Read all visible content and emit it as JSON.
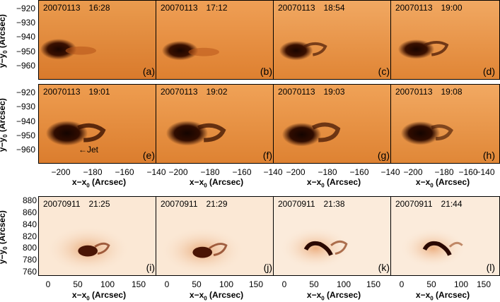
{
  "figure": {
    "rows": [
      {
        "ylabel": "y−y",
        "ylabel_sub": "0",
        "ylabel_unit": " (Arcsec)",
        "yticks": [
          "−920",
          "−930",
          "−940",
          "−950",
          "−960"
        ],
        "panels": [
          {
            "date": "20070113",
            "time": "16:28",
            "label": "(a)"
          },
          {
            "date": "20070113",
            "time": "17:12",
            "label": "(b)"
          },
          {
            "date": "20070113",
            "time": "18:54",
            "label": "(c)"
          },
          {
            "date": "20070113",
            "time": "19:00",
            "label": "(d)"
          }
        ]
      },
      {
        "ylabel": "y−y",
        "ylabel_sub": "0",
        "ylabel_unit": " (Arcsec)",
        "yticks": [
          "−920",
          "−930",
          "−940",
          "−950",
          "−960"
        ],
        "xticks": [
          "−200",
          "−180",
          "−160",
          "−140"
        ],
        "xlabel": "x−x",
        "xlabel_sub": "0",
        "xlabel_unit": " (Arcsec)",
        "jet_annotation": "←Jet",
        "panels": [
          {
            "date": "20070113",
            "time": "19:01",
            "label": "(e)"
          },
          {
            "date": "20070113",
            "time": "19:02",
            "label": "(f)"
          },
          {
            "date": "20070113",
            "time": "19:03",
            "label": "(g)"
          },
          {
            "date": "20070113",
            "time": "19:08",
            "label": "(h)"
          }
        ]
      },
      {
        "ylabel": "y−y",
        "ylabel_sub": "0",
        "ylabel_unit": " (Arcsec)",
        "yticks": [
          "880",
          "860",
          "840",
          "820",
          "800",
          "780",
          "760"
        ],
        "xticks": [
          "0",
          "50",
          "100",
          "150"
        ],
        "xlabel": "x−x",
        "xlabel_sub": "0",
        "xlabel_unit": " (Arcsec)",
        "panels": [
          {
            "date": "20070911",
            "time": "21:25",
            "label": "(i)"
          },
          {
            "date": "20070911",
            "time": "21:29",
            "label": "(j)"
          },
          {
            "date": "20070911",
            "time": "21:38",
            "label": "(k)"
          },
          {
            "date": "20070911",
            "time": "21:44",
            "label": "(l)"
          }
        ]
      }
    ],
    "colors": {
      "row1_bg": "#e08a3a",
      "row2_bg": "#e59a50",
      "row3_bg": "#fbe6d2",
      "feature": "#2a0a00"
    }
  }
}
